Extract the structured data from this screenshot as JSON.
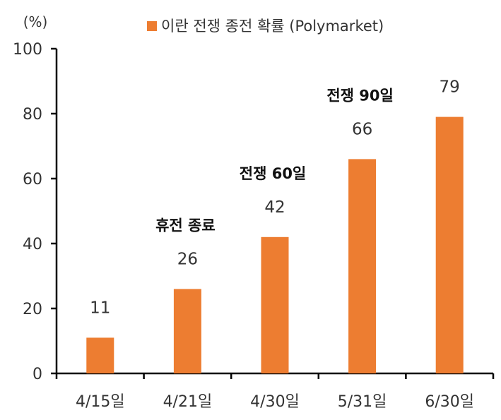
{
  "chart_data": {
    "type": "bar",
    "unit": "(%)",
    "categories": [
      "4/15일",
      "4/21일",
      "4/30일",
      "5/31일",
      "6/30일"
    ],
    "series": [
      {
        "name": "이란 전쟁 종전 확률 (Polymarket)",
        "values": [
          11,
          26,
          42,
          66,
          79
        ],
        "color": "#ED7D31"
      }
    ],
    "data_labels": [
      "11",
      "26",
      "42",
      "66",
      "79"
    ],
    "ylim": [
      0,
      100
    ],
    "yticks": [
      0,
      20,
      40,
      60,
      80,
      100
    ],
    "ytick_labels": [
      "0",
      "20",
      "40",
      "60",
      "80",
      "100"
    ],
    "grid": false,
    "legend_position": "top",
    "annotations": [
      {
        "text": "휴전 종료",
        "category_index": 1
      },
      {
        "text": "전쟁 60일",
        "category_index": 2
      },
      {
        "text": "전쟁 90일",
        "category_index": 3
      }
    ],
    "axis_color": "#000000"
  }
}
